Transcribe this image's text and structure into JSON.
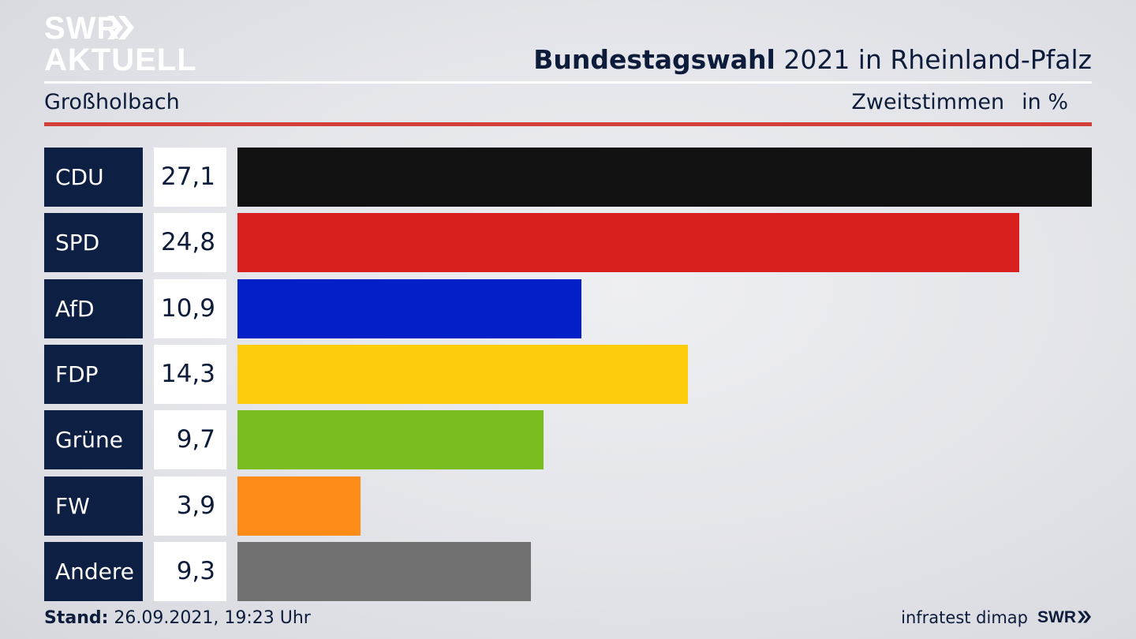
{
  "header": {
    "logo_line1": "SWR",
    "logo_line2": "AKTUELL",
    "title_bold": "Bundestagswahl",
    "title_rest": " 2021 in Rheinland-Pfalz",
    "location": "Großholbach",
    "measure": "Zweitstimmen",
    "unit": "in %"
  },
  "chart_data": {
    "type": "bar",
    "orientation": "horizontal",
    "categories": [
      "CDU",
      "SPD",
      "AfD",
      "FDP",
      "Grüne",
      "FW",
      "Andere"
    ],
    "values": [
      27.1,
      24.8,
      10.9,
      14.3,
      9.7,
      3.9,
      9.3
    ],
    "value_labels": [
      "27,1",
      "24,8",
      "10,9",
      "14,3",
      "9,7",
      "3,9",
      "9,3"
    ],
    "colors": [
      "#121212",
      "#d8201f",
      "#0320c8",
      "#fdcd0b",
      "#79bd1f",
      "#fc8c17",
      "#717171"
    ],
    "xlim": [
      0,
      27.1
    ],
    "grid": false,
    "legend": "none"
  },
  "footer": {
    "stand_label": "Stand:",
    "stand_value": " 26.09.2021, 19:23 Uhr",
    "source": "infratest dimap",
    "brand": "SWR"
  }
}
